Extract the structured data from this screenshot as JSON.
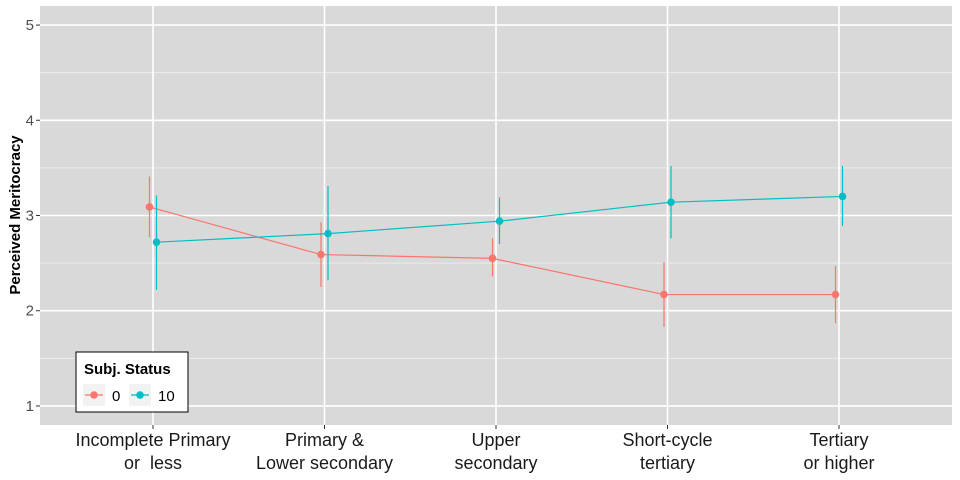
{
  "chart_data": {
    "type": "line",
    "title": "",
    "xlabel": "",
    "ylabel": "Perceived Meritocracy",
    "categories": [
      [
        "Incomplete Primary",
        "or  less"
      ],
      [
        "Primary &",
        "Lower secondary"
      ],
      [
        "Upper",
        "secondary"
      ],
      [
        "Short-cycle",
        "tertiary"
      ],
      [
        "Tertiary",
        "or higher"
      ]
    ],
    "ylim": [
      0.8,
      5.2
    ],
    "yticks": [
      1,
      2,
      3,
      4,
      5
    ],
    "grid": true,
    "legend": {
      "title": "Subj. Status",
      "position": "bottom-left"
    },
    "series": [
      {
        "name": "0",
        "color": "#F8766D",
        "values": [
          3.09,
          2.59,
          2.55,
          2.17,
          2.17
        ],
        "lower": [
          2.77,
          2.25,
          2.36,
          1.83,
          1.87
        ],
        "upper": [
          3.41,
          2.93,
          2.76,
          2.51,
          2.47
        ]
      },
      {
        "name": "10",
        "color": "#00BFC4",
        "values": [
          2.72,
          2.81,
          2.94,
          3.14,
          3.2
        ],
        "lower": [
          2.22,
          2.32,
          2.7,
          2.76,
          2.89
        ],
        "upper": [
          3.21,
          3.31,
          3.19,
          3.52,
          3.52
        ]
      }
    ]
  }
}
